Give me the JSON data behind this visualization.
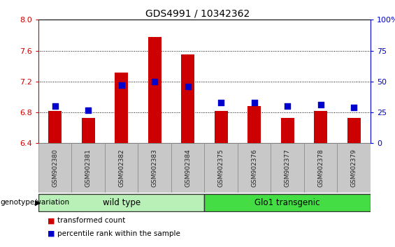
{
  "title": "GDS4991 / 10342362",
  "samples": [
    "GSM902380",
    "GSM902381",
    "GSM902382",
    "GSM902383",
    "GSM902384",
    "GSM902375",
    "GSM902376",
    "GSM902377",
    "GSM902378",
    "GSM902379"
  ],
  "transformed_count": [
    6.82,
    6.73,
    7.32,
    7.78,
    7.55,
    6.82,
    6.88,
    6.73,
    6.82,
    6.73
  ],
  "percentile_rank": [
    30,
    27,
    47,
    50,
    46,
    33,
    33,
    30,
    31,
    29
  ],
  "ylim_left": [
    6.4,
    8.0
  ],
  "ylim_right": [
    0,
    100
  ],
  "yticks_left": [
    6.4,
    6.8,
    7.2,
    7.6,
    8.0
  ],
  "yticks_right": [
    0,
    25,
    50,
    75,
    100
  ],
  "bar_color": "#cc0000",
  "dot_color": "#0000cc",
  "bar_bottom": 6.4,
  "groups": [
    {
      "label": "wild type",
      "start": 0,
      "end": 5,
      "color": "#b8f0b8"
    },
    {
      "label": "Glo1 transgenic",
      "start": 5,
      "end": 10,
      "color": "#44dd44"
    }
  ],
  "group_label_prefix": "genotype/variation",
  "legend_items": [
    {
      "color": "#cc0000",
      "label": "transformed count"
    },
    {
      "color": "#0000cc",
      "label": "percentile rank within the sample"
    }
  ],
  "left_tick_color": "#cc0000",
  "right_tick_color": "#0000cc",
  "bar_width": 0.4,
  "dot_size": 40,
  "sample_bg_color": "#c8c8c8",
  "sample_border_color": "#888888"
}
